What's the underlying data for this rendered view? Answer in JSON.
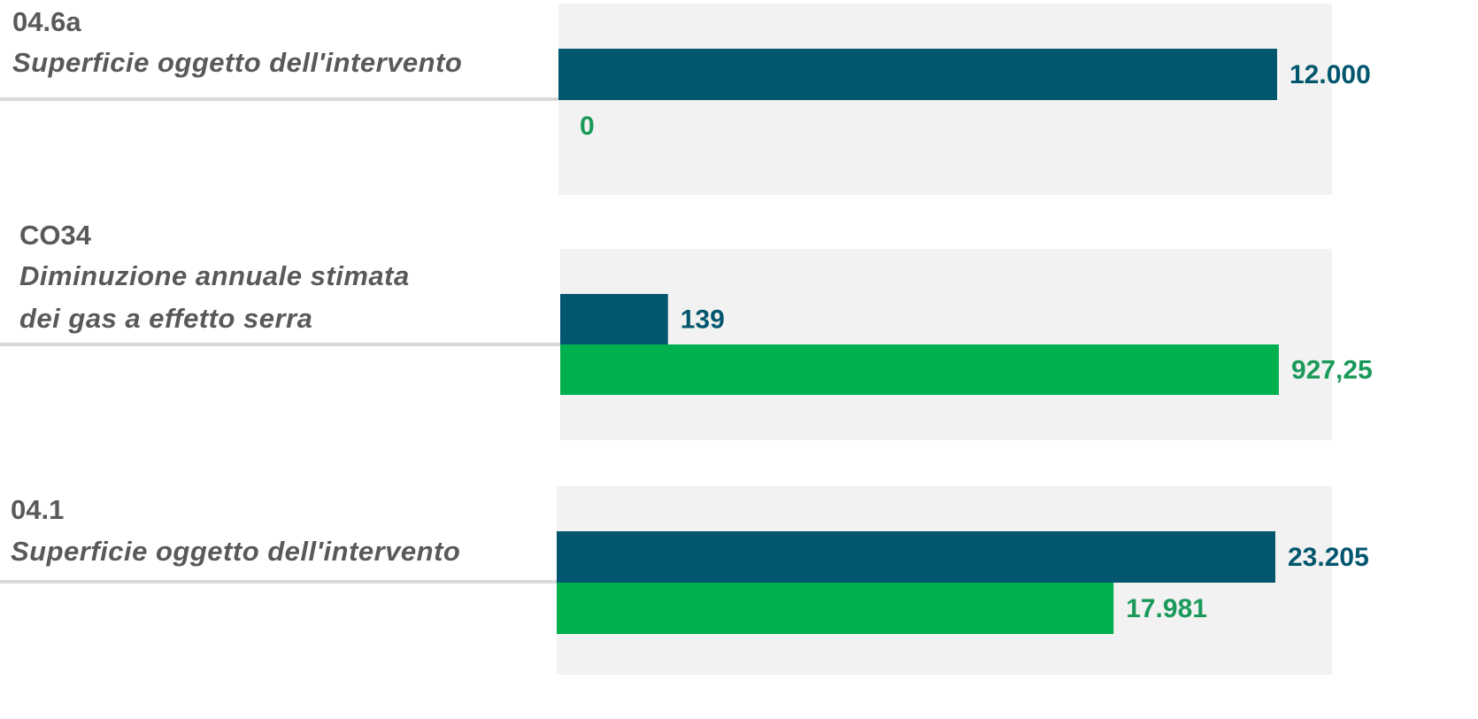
{
  "chart_data": [
    {
      "type": "bar",
      "title": "04.6a",
      "subtitle": [
        "Superficie oggetto dell'intervento"
      ],
      "series": [
        {
          "color": "#02566e",
          "label_color": "#02566e",
          "values": [
            12000
          ],
          "value_labels": [
            "12.000"
          ]
        },
        {
          "color": "#00b04f",
          "label_color": "#1a9a5a",
          "values": [
            0
          ],
          "value_labels": [
            "0"
          ]
        }
      ]
    },
    {
      "type": "bar",
      "title": "CO34",
      "subtitle": [
        "Diminuzione annuale stimata",
        "dei gas a effetto serra"
      ],
      "series": [
        {
          "color": "#02566e",
          "label_color": "#02566e",
          "values": [
            139
          ],
          "value_labels": [
            "139"
          ]
        },
        {
          "color": "#00b04f",
          "label_color": "#1a9a5a",
          "values": [
            927.25
          ],
          "value_labels": [
            "927,25"
          ]
        }
      ]
    },
    {
      "type": "bar",
      "title": "04.1",
      "subtitle": [
        "Superficie oggetto dell'intervento"
      ],
      "series": [
        {
          "color": "#02566e",
          "label_color": "#02566e",
          "values": [
            23205
          ],
          "value_labels": [
            "23.205"
          ]
        },
        {
          "color": "#00b04f",
          "label_color": "#1a9a5a",
          "values": [
            17981
          ],
          "value_labels": [
            "17.981"
          ]
        }
      ]
    }
  ]
}
